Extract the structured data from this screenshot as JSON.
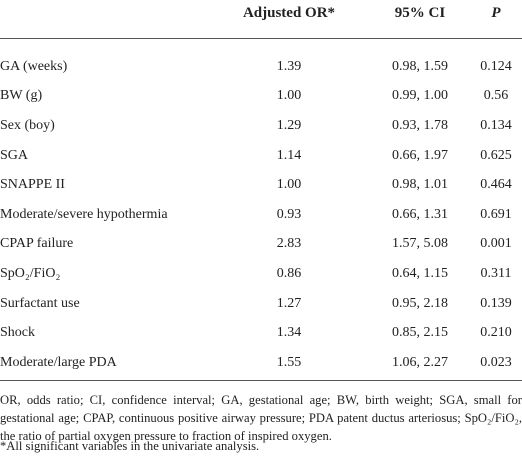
{
  "table": {
    "header": [
      "Adjusted OR*",
      "95% CI",
      "P"
    ],
    "rows": [
      [
        "GA (weeks)",
        "1.39",
        "0.98, 1.59",
        "0.124"
      ],
      [
        "BW (g)",
        "1.00",
        "0.99, 1.00",
        "0.56"
      ],
      [
        "Sex (boy)",
        "1.29",
        "0.93, 1.78",
        "0.134"
      ],
      [
        "SGA",
        "1.14",
        "0.66, 1.97",
        "0.625"
      ],
      [
        "SNAPPE II",
        "1.00",
        "0.98, 1.01",
        "0.464"
      ],
      [
        "Moderate/severe hypothermia",
        "0.93",
        "0.66, 1.31",
        "0.691"
      ],
      [
        "CPAP failure",
        "2.83",
        "1.57, 5.08",
        "0.001"
      ],
      [
        "SpO₂/FiO₂",
        "0.86",
        "0.64, 1.15",
        "0.311"
      ],
      [
        "Surfactant use",
        "1.27",
        "0.95, 2.18",
        "0.139"
      ],
      [
        "Shock",
        "1.34",
        "0.85, 2.15",
        "0.210"
      ],
      [
        "Moderate/large PDA",
        "1.55",
        "1.06, 2.27",
        "0.023"
      ]
    ]
  },
  "notes": [
    "OR, odds ratio; CI, confidence interval; GA, gestational age; BW, birth weight; SGA, small for gestational age; CPAP, continuous positive airway pressure; PDA patent ductus arteriosus; SpO₂/FiO₂, the ratio of partial oxygen pressure to fraction of inspired oxygen.",
    "*All significant variables in the univariate analysis."
  ]
}
